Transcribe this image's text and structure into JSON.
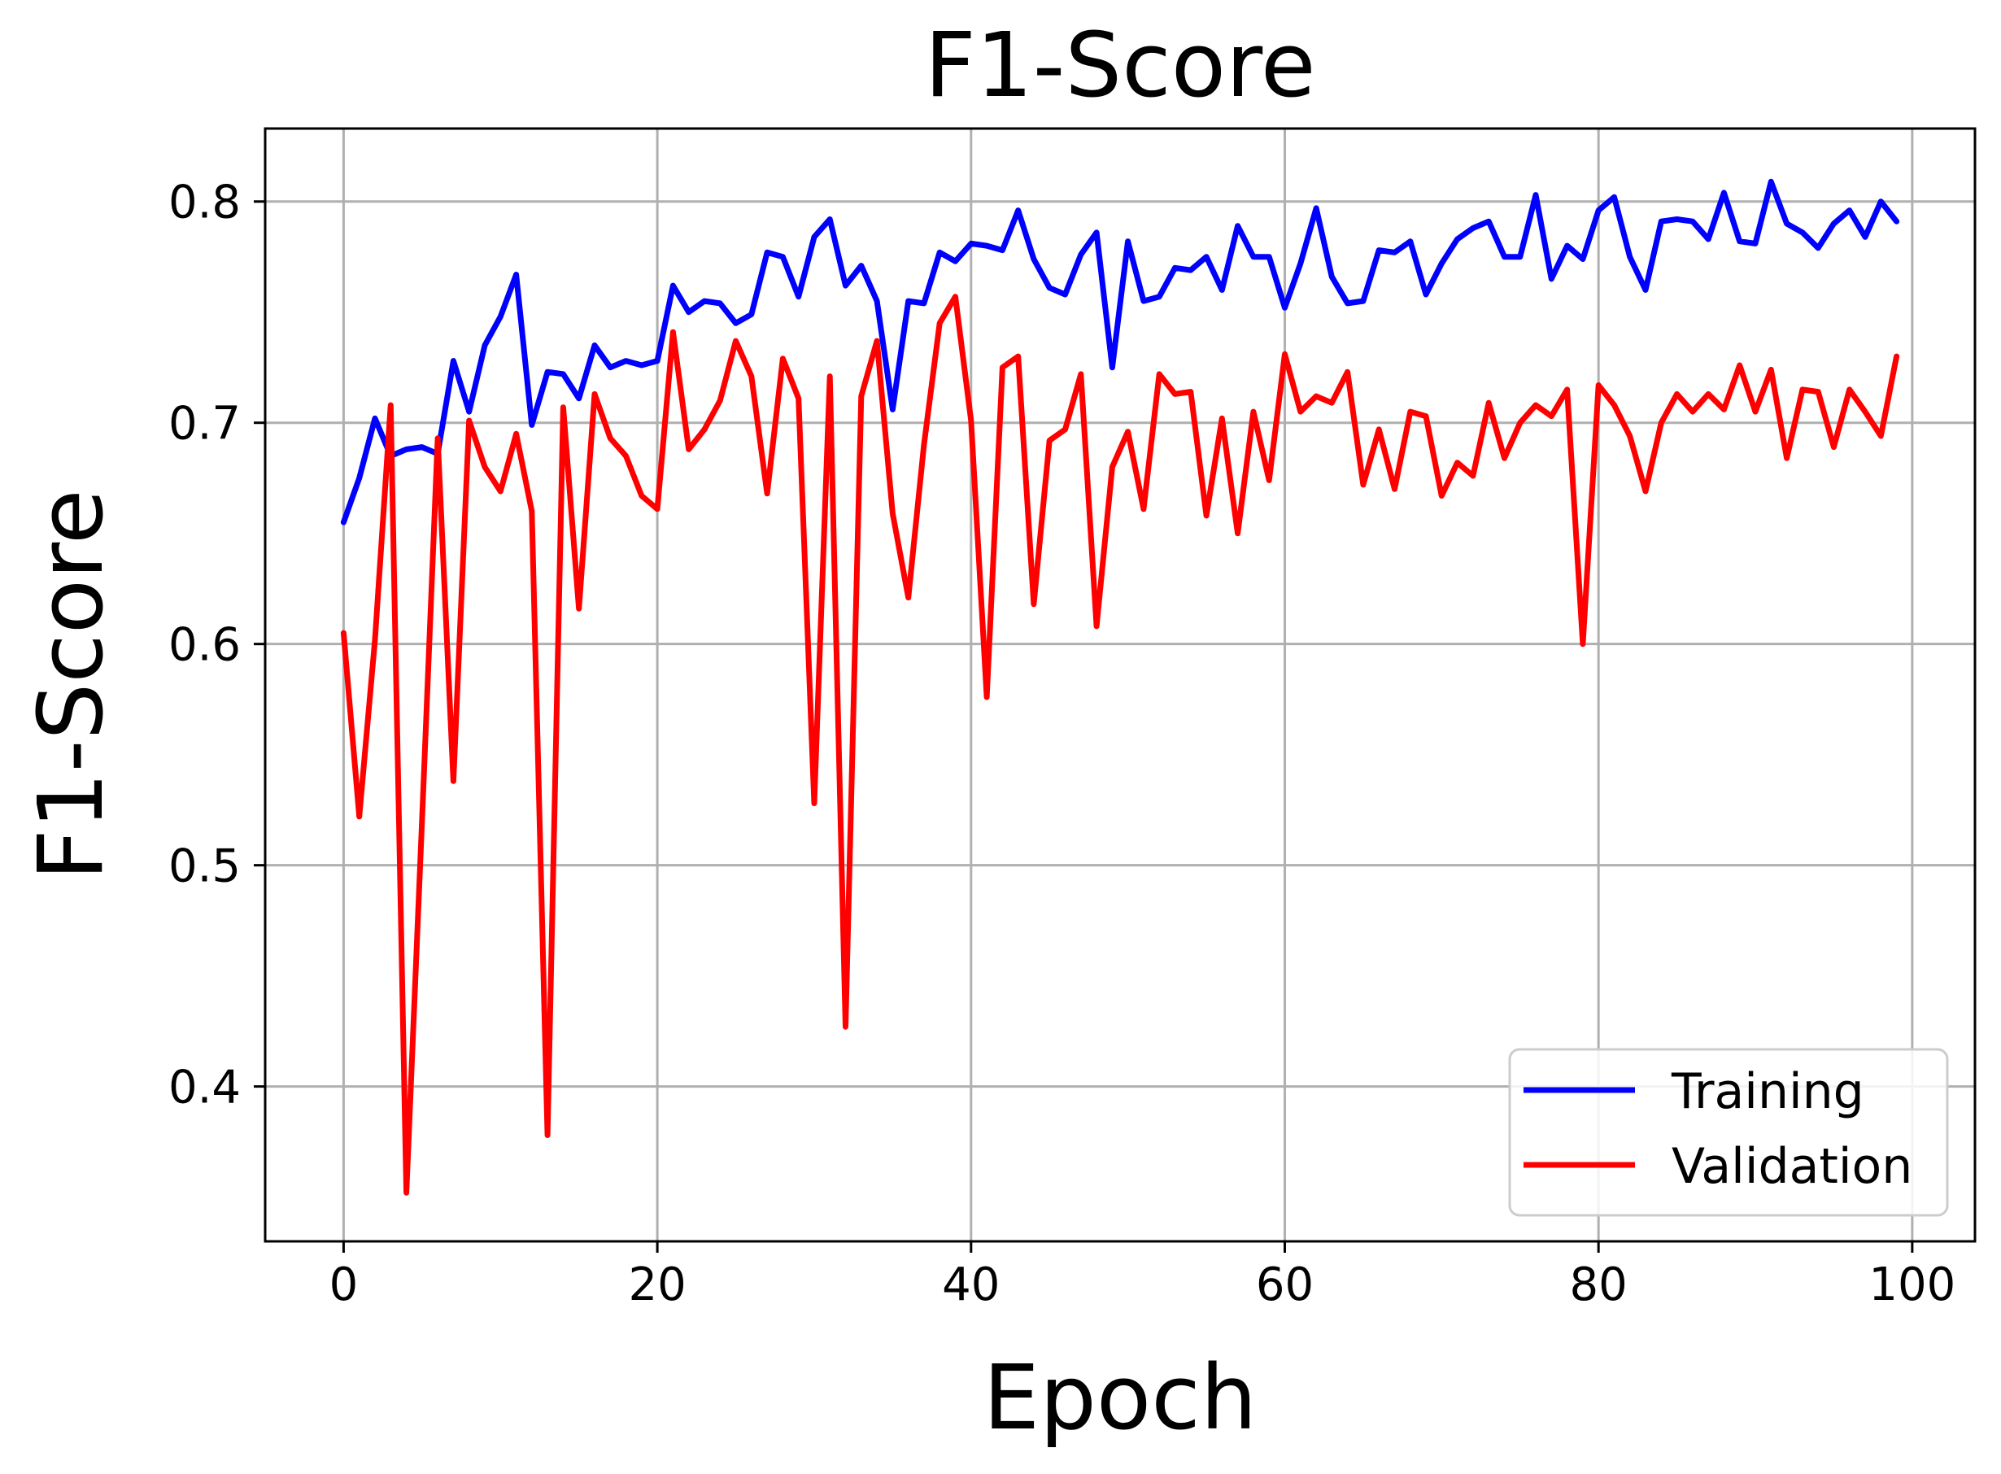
{
  "chart_data": {
    "type": "line",
    "title": "F1-Score",
    "xlabel": "Epoch",
    "ylabel": "F1-Score",
    "xlim": [
      -5,
      104
    ],
    "ylim": [
      0.33,
      0.833
    ],
    "xticks": [
      0,
      20,
      40,
      60,
      80,
      100
    ],
    "yticks": [
      0.4,
      0.5,
      0.6,
      0.7,
      0.8
    ],
    "xtick_labels": [
      "0",
      "20",
      "40",
      "60",
      "80",
      "100"
    ],
    "ytick_labels": [
      "0.4",
      "0.5",
      "0.6",
      "0.7",
      "0.8"
    ],
    "grid": true,
    "legend_position": "lower right",
    "series": [
      {
        "name": "Training",
        "color": "#0000ff",
        "x": [
          0,
          1,
          2,
          3,
          4,
          5,
          6,
          7,
          8,
          9,
          10,
          11,
          12,
          13,
          14,
          15,
          16,
          17,
          18,
          19,
          20,
          21,
          22,
          23,
          24,
          25,
          26,
          27,
          28,
          29,
          30,
          31,
          32,
          33,
          34,
          35,
          36,
          37,
          38,
          39,
          40,
          41,
          42,
          43,
          44,
          45,
          46,
          47,
          48,
          49,
          50,
          51,
          52,
          53,
          54,
          55,
          56,
          57,
          58,
          59,
          60,
          61,
          62,
          63,
          64,
          65,
          66,
          67,
          68,
          69,
          70,
          71,
          72,
          73,
          74,
          75,
          76,
          77,
          78,
          79,
          80,
          81,
          82,
          83,
          84,
          85,
          86,
          87,
          88,
          89,
          90,
          91,
          92,
          93,
          94,
          95,
          96,
          97,
          98,
          99
        ],
        "values": [
          0.655,
          0.675,
          0.702,
          0.685,
          0.688,
          0.689,
          0.686,
          0.728,
          0.705,
          0.735,
          0.748,
          0.767,
          0.699,
          0.723,
          0.722,
          0.711,
          0.735,
          0.725,
          0.728,
          0.726,
          0.728,
          0.762,
          0.75,
          0.755,
          0.754,
          0.745,
          0.749,
          0.777,
          0.775,
          0.757,
          0.784,
          0.792,
          0.762,
          0.771,
          0.755,
          0.706,
          0.755,
          0.754,
          0.777,
          0.773,
          0.781,
          0.78,
          0.778,
          0.796,
          0.774,
          0.761,
          0.758,
          0.776,
          0.786,
          0.725,
          0.782,
          0.755,
          0.757,
          0.77,
          0.769,
          0.775,
          0.76,
          0.789,
          0.775,
          0.775,
          0.752,
          0.772,
          0.797,
          0.766,
          0.754,
          0.755,
          0.778,
          0.777,
          0.782,
          0.758,
          0.772,
          0.783,
          0.788,
          0.791,
          0.775,
          0.775,
          0.803,
          0.765,
          0.78,
          0.774,
          0.796,
          0.802,
          0.775,
          0.76,
          0.791,
          0.792,
          0.791,
          0.783,
          0.804,
          0.782,
          0.781,
          0.809,
          0.79,
          0.786,
          0.779,
          0.79,
          0.796,
          0.784,
          0.8,
          0.791
        ]
      },
      {
        "name": "Validation",
        "color": "#ff0000",
        "x": [
          0,
          1,
          2,
          3,
          4,
          5,
          6,
          7,
          8,
          9,
          10,
          11,
          12,
          13,
          14,
          15,
          16,
          17,
          18,
          19,
          20,
          21,
          22,
          23,
          24,
          25,
          26,
          27,
          28,
          29,
          30,
          31,
          32,
          33,
          34,
          35,
          36,
          37,
          38,
          39,
          40,
          41,
          42,
          43,
          44,
          45,
          46,
          47,
          48,
          49,
          50,
          51,
          52,
          53,
          54,
          55,
          56,
          57,
          58,
          59,
          60,
          61,
          62,
          63,
          64,
          65,
          66,
          67,
          68,
          69,
          70,
          71,
          72,
          73,
          74,
          75,
          76,
          77,
          78,
          79,
          80,
          81,
          82,
          83,
          84,
          85,
          86,
          87,
          88,
          89,
          90,
          91,
          92,
          93,
          94,
          95,
          96,
          97,
          98,
          99
        ],
        "values": [
          0.605,
          0.522,
          0.602,
          0.708,
          0.352,
          0.52,
          0.693,
          0.538,
          0.701,
          0.68,
          0.669,
          0.695,
          0.66,
          0.378,
          0.707,
          0.616,
          0.713,
          0.693,
          0.685,
          0.667,
          0.661,
          0.741,
          0.688,
          0.697,
          0.71,
          0.737,
          0.721,
          0.668,
          0.729,
          0.711,
          0.528,
          0.721,
          0.427,
          0.712,
          0.737,
          0.659,
          0.621,
          0.69,
          0.745,
          0.757,
          0.701,
          0.576,
          0.725,
          0.73,
          0.618,
          0.692,
          0.697,
          0.722,
          0.608,
          0.68,
          0.696,
          0.661,
          0.722,
          0.713,
          0.714,
          0.658,
          0.702,
          0.65,
          0.705,
          0.674,
          0.731,
          0.705,
          0.712,
          0.709,
          0.723,
          0.672,
          0.697,
          0.67,
          0.705,
          0.703,
          0.667,
          0.682,
          0.676,
          0.709,
          0.684,
          0.7,
          0.708,
          0.703,
          0.715,
          0.6,
          0.717,
          0.708,
          0.694,
          0.669,
          0.7,
          0.713,
          0.705,
          0.713,
          0.706,
          0.726,
          0.705,
          0.724,
          0.684,
          0.715,
          0.714,
          0.689,
          0.715,
          0.705,
          0.694,
          0.73
        ]
      }
    ]
  }
}
